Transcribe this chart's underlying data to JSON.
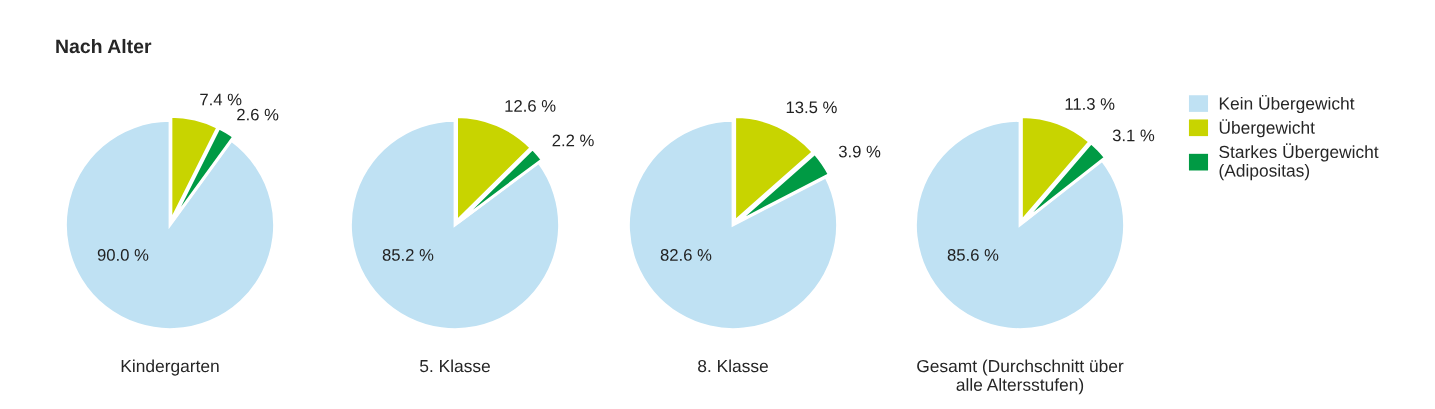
{
  "chart_data": [
    {
      "type": "pie",
      "title": "Nach Alter",
      "xlabel": "Kindergarten",
      "categories": [
        null,
        null,
        null
      ],
      "values": [
        90.0,
        7.4,
        2.6
      ],
      "value_labels": [
        "90.0 %",
        "7.4 %",
        "2.6 %"
      ],
      "colors": [
        "#bfe1f3",
        "#c8d400",
        "#009a44"
      ]
    },
    {
      "type": "pie",
      "xlabel": "5. Klasse",
      "categories": [
        null,
        null,
        null
      ],
      "values": [
        85.2,
        12.6,
        2.2
      ],
      "value_labels": [
        "85.2 %",
        "12.6 %",
        "2.2 %"
      ],
      "colors": [
        "#bfe1f3",
        "#c8d400",
        "#009a44"
      ]
    },
    {
      "type": "pie",
      "xlabel": "8. Klasse",
      "categories": [
        null,
        null,
        null
      ],
      "values": [
        82.6,
        13.5,
        3.9
      ],
      "value_labels": [
        "82.6 %",
        "13.5 %",
        "3.9 %"
      ],
      "colors": [
        "#bfe1f3",
        "#c8d400",
        "#009a44"
      ]
    },
    {
      "type": "pie",
      "xlabel": "Gesamt (Durchschnitt über\nalle Altersstufen)",
      "categories": [
        "Kein Übergewicht",
        "Übergewicht",
        "Starkes Übergewicht\n(Adipositas)"
      ],
      "values": [
        85.6,
        11.3,
        3.1
      ],
      "value_labels": [
        "85.6 %",
        "11.3 %",
        "3.1 %"
      ],
      "colors": [
        "#bfe1f3",
        "#c8d400",
        "#009a44"
      ],
      "legend": "right"
    }
  ]
}
